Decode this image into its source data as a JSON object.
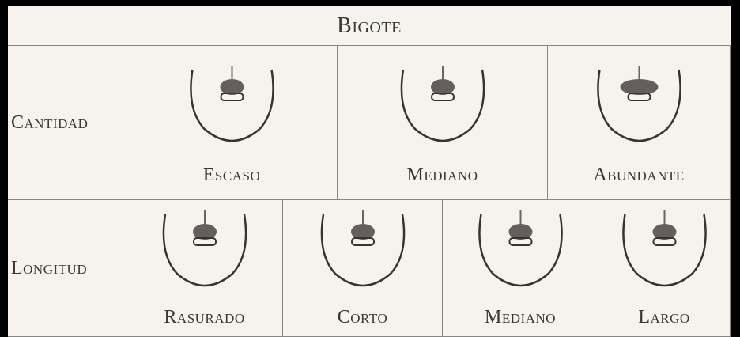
{
  "header": {
    "title": "Bigote"
  },
  "rows": [
    {
      "label": "Cantidad",
      "cells": [
        "Escaso",
        "Mediano",
        "Abundante"
      ]
    },
    {
      "label": "Longitud",
      "cells": [
        "Rasurado",
        "Corto",
        "Mediano",
        "Largo"
      ]
    }
  ]
}
